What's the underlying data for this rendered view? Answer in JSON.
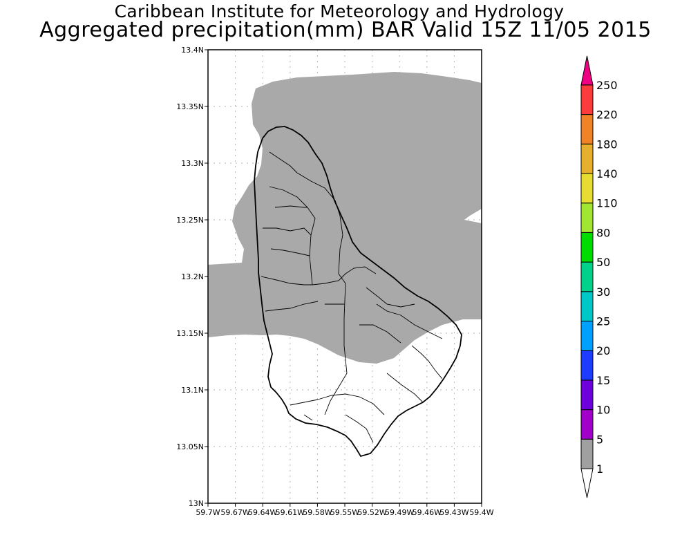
{
  "title": "Caribbean Institute for Meteorology and Hydrology",
  "subtitle": "Aggregated precipitation(mm) BAR Valid 15Z 11/05 2015",
  "map": {
    "lat_labels": [
      "13.4N",
      "13.35N",
      "13.3N",
      "13.25N",
      "13.2N",
      "13.15N",
      "13.1N",
      "13.05N",
      "13N"
    ],
    "lon_labels": [
      "59.7W",
      "59.67W",
      "59.64W",
      "59.61W",
      "59.58W",
      "59.55W",
      "59.52W",
      "59.49W",
      "59.46W",
      "59.43W",
      "59.4W"
    ],
    "lat_range": [
      13.0,
      13.4
    ],
    "lon_range": [
      -59.7,
      -59.4
    ],
    "grid": true,
    "region": "Barbados",
    "shaded_class": "1-5 mm"
  },
  "colorbar": {
    "levels": [
      "1",
      "5",
      "10",
      "15",
      "20",
      "25",
      "30",
      "50",
      "80",
      "110",
      "140",
      "180",
      "220",
      "250"
    ],
    "colors": [
      "#a0a0a0",
      "#a000c8",
      "#6e00dc",
      "#1e3cff",
      "#00a0ff",
      "#00c8c8",
      "#00d28c",
      "#00dc00",
      "#a0e632",
      "#e6dc32",
      "#e6af2d",
      "#f08228",
      "#fa3c3c",
      "#f00082"
    ],
    "low_end_color": "#ffffff",
    "high_end_color": "#f00082"
  }
}
